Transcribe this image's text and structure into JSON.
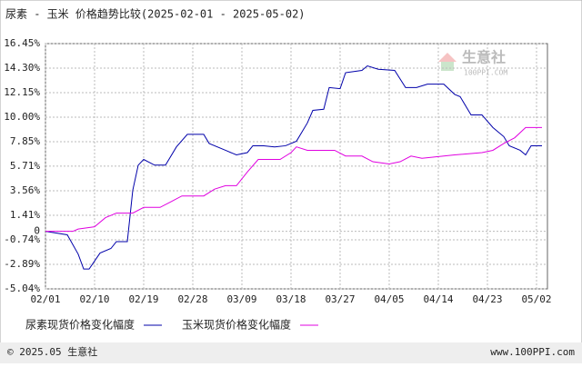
{
  "chart_data": {
    "type": "line",
    "title": "尿素 - 玉米 价格趋势比较(2025-02-01 - 2025-05-02)",
    "watermark": "生意社",
    "watermark_sub": "100PPI.COM",
    "footer_left": "© 2025.05 生意社",
    "footer_right": "www.100PPI.com",
    "xlim": [
      "02/01",
      "05/04"
    ],
    "xticks": [
      "02/01",
      "02/10",
      "02/19",
      "02/28",
      "03/09",
      "03/18",
      "03/27",
      "04/05",
      "04/14",
      "04/23",
      "05/02"
    ],
    "ylim": [
      -5.04,
      16.45
    ],
    "yticks": [
      {
        "value": -5.04,
        "label": "-5.04%"
      },
      {
        "value": -2.89,
        "label": "-2.89%"
      },
      {
        "value": -0.74,
        "label": "-0.74%"
      },
      0,
      {
        "value": 1.41,
        "label": "1.41%"
      },
      {
        "value": 3.56,
        "label": "3.56%"
      },
      {
        "value": 5.71,
        "label": "5.71%"
      },
      {
        "value": 7.85,
        "label": "7.85%"
      },
      {
        "value": 10.0,
        "label": "10.00%"
      },
      {
        "value": 12.15,
        "label": "12.15%"
      },
      {
        "value": 14.3,
        "label": "14.30%"
      },
      {
        "value": 16.45,
        "label": "16.45%"
      }
    ],
    "grid": true,
    "series": [
      {
        "name": "尿素现货价格变化幅度",
        "color": "#0000aa",
        "x": [
          "02/01",
          "02/05",
          "02/07",
          "02/08",
          "02/09",
          "02/11",
          "02/13",
          "02/14",
          "02/16",
          "02/17",
          "02/18",
          "02/19",
          "02/21",
          "02/23",
          "02/25",
          "02/27",
          "03/02",
          "03/03",
          "03/06",
          "03/08",
          "03/10",
          "03/11",
          "03/13",
          "03/15",
          "03/17",
          "03/19",
          "03/21",
          "03/22",
          "03/24",
          "03/25",
          "03/27",
          "03/28",
          "03/31",
          "04/01",
          "04/03",
          "04/06",
          "04/08",
          "04/10",
          "04/12",
          "04/15",
          "04/17",
          "04/18",
          "04/20",
          "04/22",
          "04/24",
          "04/26",
          "04/27",
          "04/29",
          "04/30",
          "05/01",
          "05/03"
        ],
        "values": [
          0,
          -0.3,
          -2.0,
          -3.3,
          -3.3,
          -1.9,
          -1.5,
          -0.9,
          -0.9,
          3.6,
          5.8,
          6.3,
          5.8,
          5.8,
          7.4,
          8.5,
          8.5,
          7.7,
          7.1,
          6.7,
          6.9,
          7.5,
          7.5,
          7.4,
          7.5,
          7.9,
          9.5,
          10.6,
          10.7,
          12.6,
          12.5,
          13.9,
          14.1,
          14.5,
          14.2,
          14.1,
          12.6,
          12.6,
          12.9,
          12.9,
          12.0,
          11.8,
          10.2,
          10.2,
          9.1,
          8.3,
          7.5,
          7.1,
          6.7,
          7.5,
          7.5
        ]
      },
      {
        "name": "玉米现货价格变化幅度",
        "color": "#e000e0",
        "x": [
          "02/01",
          "02/06",
          "02/07",
          "02/10",
          "02/12",
          "02/14",
          "02/17",
          "02/19",
          "02/22",
          "02/24",
          "02/26",
          "03/02",
          "03/04",
          "03/06",
          "03/08",
          "03/10",
          "03/12",
          "03/16",
          "03/18",
          "03/19",
          "03/21",
          "03/26",
          "03/28",
          "03/31",
          "04/02",
          "04/05",
          "04/07",
          "04/09",
          "04/11",
          "04/15",
          "04/17",
          "04/22",
          "04/24",
          "04/26",
          "04/28",
          "04/30",
          "05/03"
        ],
        "values": [
          0,
          0,
          0.2,
          0.4,
          1.2,
          1.6,
          1.6,
          2.1,
          2.1,
          2.6,
          3.1,
          3.1,
          3.7,
          4.0,
          4.0,
          5.2,
          6.3,
          6.3,
          6.9,
          7.4,
          7.1,
          7.1,
          6.6,
          6.6,
          6.1,
          5.9,
          6.1,
          6.6,
          6.4,
          6.6,
          6.7,
          6.9,
          7.1,
          7.7,
          8.2,
          9.1,
          9.1
        ]
      }
    ]
  }
}
